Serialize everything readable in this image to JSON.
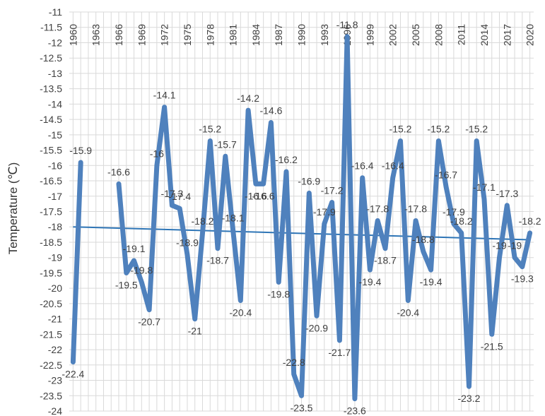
{
  "chart_data": {
    "type": "line",
    "title": "",
    "xlabel": "",
    "ylabel": "Temperature (℃)",
    "ylim": [
      -24,
      -11
    ],
    "y_ticks": [
      "-11",
      "-11.5",
      "-12",
      "-12.5",
      "-13",
      "-13.5",
      "-14",
      "-14.5",
      "-15",
      "-15.5",
      "-16",
      "-16.5",
      "-17",
      "-17.5",
      "-18",
      "-18.5",
      "-19",
      "-19.5",
      "-20",
      "-20.5",
      "-21",
      "-21.5",
      "-22",
      "-22.5",
      "-23",
      "-23.5",
      "-24"
    ],
    "x_tick_labels": [
      "1960",
      "1963",
      "1966",
      "1969",
      "1972",
      "1975",
      "1978",
      "1981",
      "1984",
      "1987",
      "1990",
      "1993",
      "1996",
      "1999",
      "2002",
      "2005",
      "2008",
      "2011",
      "2014",
      "2017",
      "2020"
    ],
    "grid": true,
    "legend": "none",
    "colors": {
      "series": "#4f81bd",
      "trend": "#2e75b6",
      "grid": "#d9d9d9"
    },
    "series": [
      {
        "x": [
          1960,
          1961,
          1966,
          1967,
          1968,
          1969,
          1970,
          1971,
          1972,
          1973,
          1974,
          1975,
          1976,
          1977,
          1978,
          1979,
          1980,
          1981,
          1982,
          1983,
          1984,
          1985,
          1986,
          1987,
          1988,
          1989,
          1990,
          1991,
          1992,
          1993,
          1994,
          1995,
          1996,
          1997,
          1998,
          1999,
          2000,
          2001,
          2002,
          2003,
          2004,
          2005,
          2006,
          2007,
          2008,
          2009,
          2010,
          2011,
          2012,
          2013,
          2014,
          2015,
          2016,
          2017,
          2018,
          2019,
          2020
        ],
        "y": [
          -22.4,
          -15.9,
          -16.6,
          -19.5,
          -19.1,
          -19.8,
          -20.7,
          -16,
          -14.1,
          -17.3,
          -17.4,
          -18.9,
          -21,
          -18.2,
          -15.2,
          -18.7,
          -15.7,
          -18.1,
          -20.4,
          -14.2,
          -16.6,
          -16.6,
          -14.6,
          -19.8,
          -16.2,
          -22.8,
          -23.5,
          -16.9,
          -20.9,
          -17.9,
          -17.2,
          -21.7,
          -11.8,
          -23.6,
          -16.4,
          -19.4,
          -17.8,
          -18.7,
          -16.4,
          -15.2,
          -20.4,
          -17.8,
          -18.8,
          -19.4,
          -15.2,
          -16.7,
          -17.9,
          -18.2,
          -23.2,
          -15.2,
          -17.1,
          -21.5,
          -19,
          -17.3,
          -19,
          -19.3,
          -18.2
        ]
      }
    ],
    "data_labels": [
      "-22.4",
      "-15.9",
      "-16.6",
      "-19.5",
      "-19.1",
      "-19.8",
      "-20.7",
      "-16",
      "-14.1",
      "-17.3",
      "-17.4",
      "-18.9",
      "-21",
      "-18.2",
      "-15.2",
      "-18.7",
      "-15.7",
      "-18.1",
      "-20.4",
      "-14.2",
      "-16.6",
      "-16.6",
      "-14.6",
      "-19.8",
      "-16.2",
      "-22.8",
      "-23.5",
      "-16.9",
      "-20.9",
      "-17.9",
      "-17.2",
      "-21.7",
      "-11.8",
      "-23.6",
      "-16.4",
      "-19.4",
      "-17.8",
      "-18.7",
      "-16.4",
      "-15.2",
      "-20.4",
      "-17.8",
      "-18.8",
      "-19.4",
      "-15.2",
      "-16.7",
      "-17.9",
      "-18.2",
      "-23.2",
      "-15.2",
      "-17.1",
      "-21.5",
      "-19",
      "-17.3",
      "-19",
      "-19.3",
      "-18.2"
    ],
    "trendline": {
      "x": [
        1960,
        2020
      ],
      "y": [
        -18,
        -18.42
      ]
    }
  }
}
